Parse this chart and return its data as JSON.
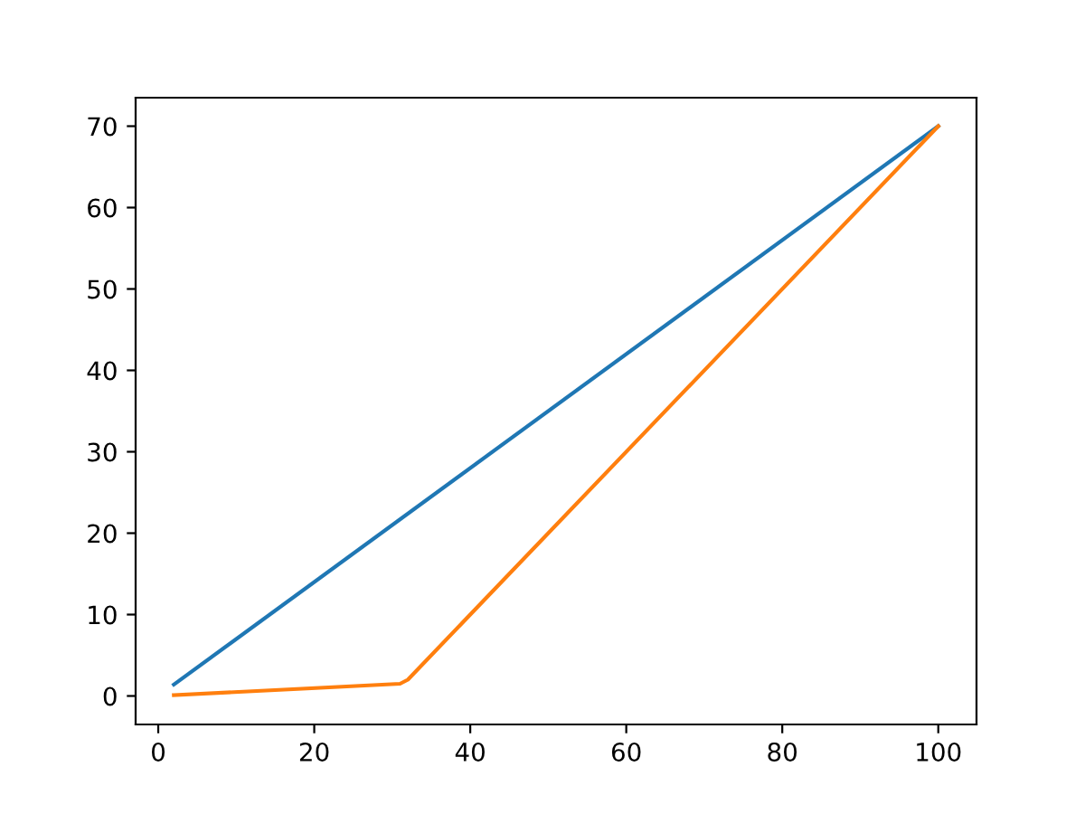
{
  "chart_data": {
    "type": "line",
    "xlim": [
      -2.9,
      104.9
    ],
    "ylim": [
      -3.5,
      73.5
    ],
    "xticks": [
      0,
      20,
      40,
      60,
      80,
      100
    ],
    "yticks": [
      0,
      10,
      20,
      30,
      40,
      50,
      60,
      70
    ],
    "grid": false,
    "legend": false,
    "series": [
      {
        "color": "#1f77b4",
        "x": [
          2,
          100
        ],
        "values": [
          1.4,
          70
        ]
      },
      {
        "color": "#ff7f0e",
        "x": [
          2,
          31,
          32,
          100
        ],
        "values": [
          0.1,
          1.5,
          2.0,
          70
        ]
      }
    ]
  }
}
